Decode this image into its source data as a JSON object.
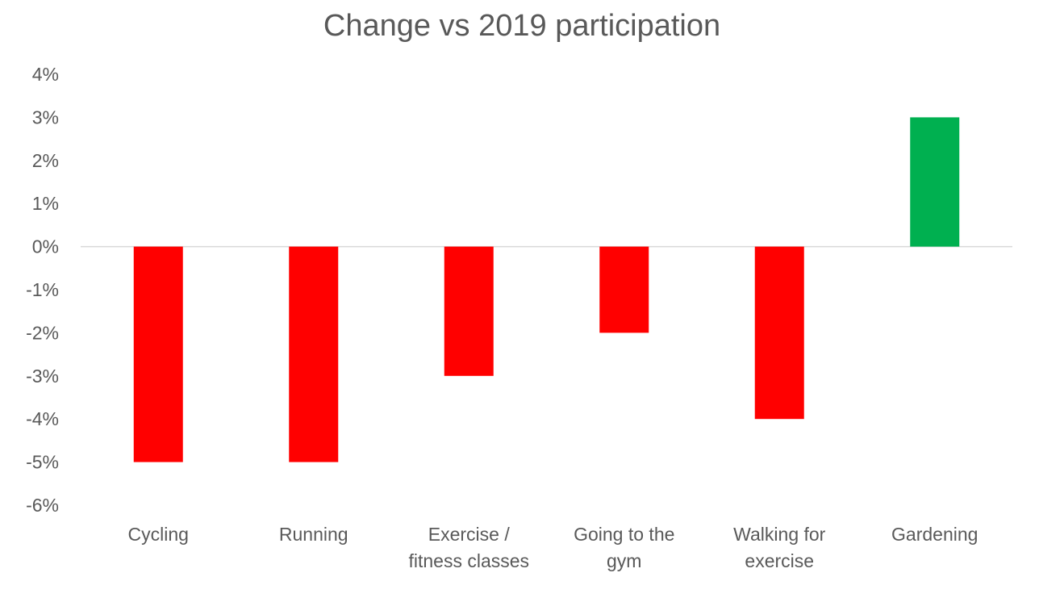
{
  "chart_data": {
    "type": "bar",
    "title": "Change vs 2019 participation",
    "xlabel": "",
    "ylabel": "",
    "categories": [
      [
        "Cycling"
      ],
      [
        "Running"
      ],
      [
        "Exercise /",
        "fitness classes"
      ],
      [
        "Going to the",
        "gym"
      ],
      [
        "Walking for",
        "exercise"
      ],
      [
        "Gardening"
      ]
    ],
    "values": [
      -5,
      -5,
      -3,
      -2,
      -4,
      3
    ],
    "ylim": [
      -6,
      4
    ],
    "yticks": [
      "4%",
      "3%",
      "2%",
      "1%",
      "0%",
      "-1%",
      "-2%",
      "-3%",
      "-4%",
      "-5%",
      "-6%"
    ],
    "ytick_values": [
      4,
      3,
      2,
      1,
      0,
      -1,
      -2,
      -3,
      -4,
      -5,
      -6
    ],
    "grid": false,
    "legend": "none",
    "colors": {
      "negative": "#ff0000",
      "positive": "#00b050",
      "zero_line": "#d9d9d9",
      "text": "#595959"
    }
  }
}
